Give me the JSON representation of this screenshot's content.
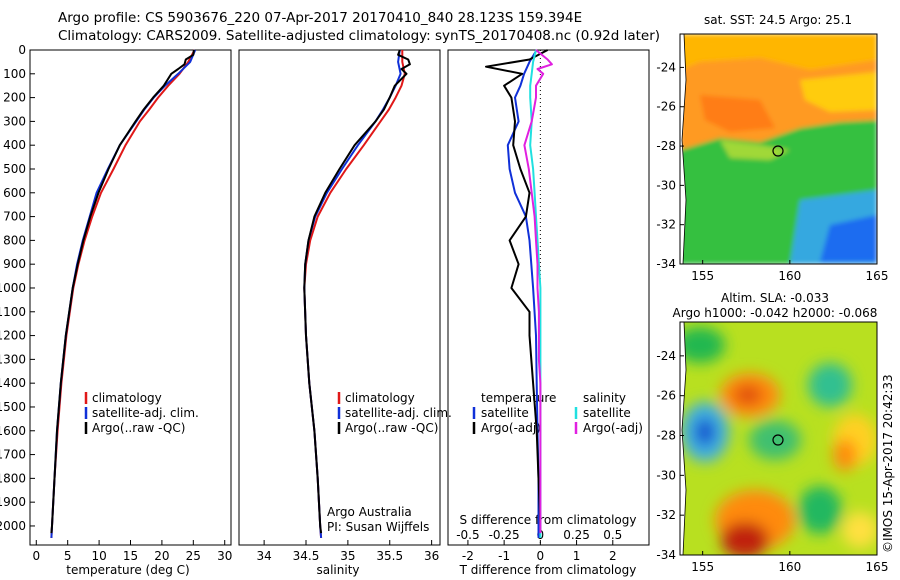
{
  "header": {
    "line1": "Argo profile: CS 5903676_220 07-Apr-2017 20170410_840 28.123S 159.394E",
    "line2": "Climatology: CARS2009. Satellite-adjusted climatology: synTS_20170408.nc (0.92d later)"
  },
  "colors": {
    "climatology": "#e01818",
    "satellite": "#1030d8",
    "argo": "#000000",
    "sal_satellite": "#20e0e0",
    "sal_argo": "#e020e0"
  },
  "labels": {
    "temp_xlabel": "temperature (deg C)",
    "sal_xlabel": "salinity",
    "diff_xlabel": "T difference from climatology",
    "diff_xlabel_top": "S difference from climatology",
    "legend_clim": "climatology",
    "legend_sat": "satellite-adj. clim.",
    "legend_argo": "Argo(..raw -QC)",
    "legend_temperature": "temperature",
    "legend_salinity": "salinity",
    "legend_satellite": "satellite",
    "legend_argo_adj": "Argo(-adj)",
    "credit1": "Argo Australia",
    "credit2": "PI: Susan Wijffels",
    "map1_title": "sat. SST: 24.5 Argo: 25.1",
    "map2_title1": "Altim. SLA: -0.033",
    "map2_title2": "Argo h1000: -0.042 h2000: -0.068",
    "side_text": "©IMOS 15-Apr-2017 20:42:33"
  },
  "chart_data": [
    {
      "type": "line",
      "panel": "temperature",
      "xlabel": "temperature (deg C)",
      "ylabel": "",
      "xlim": [
        -1,
        31
      ],
      "ylim": [
        2080,
        0
      ],
      "xticks": [
        0,
        5,
        10,
        15,
        20,
        25,
        30
      ],
      "yticks": [
        0,
        100,
        200,
        300,
        400,
        500,
        600,
        700,
        800,
        900,
        1000,
        1100,
        1200,
        1300,
        1400,
        1500,
        1600,
        1700,
        1800,
        1900,
        2000
      ],
      "series": [
        {
          "name": "climatology",
          "depth": [
            0,
            50,
            100,
            150,
            200,
            250,
            300,
            400,
            500,
            600,
            700,
            800,
            900,
            1000,
            1200,
            1400,
            1600,
            1800,
            2000,
            2050
          ],
          "values": [
            25.2,
            24.2,
            22.8,
            21,
            19.4,
            18,
            16.5,
            14.2,
            12.3,
            10.3,
            8.9,
            7.7,
            6.7,
            5.9,
            4.8,
            4.0,
            3.4,
            2.9,
            2.5,
            2.4
          ]
        },
        {
          "name": "satellite-adj. clim.",
          "depth": [
            0,
            50,
            100,
            150,
            200,
            250,
            300,
            400,
            500,
            600,
            700,
            800,
            900,
            1000,
            1200,
            1400,
            1600,
            1800,
            2000,
            2050
          ],
          "values": [
            25.3,
            24.5,
            22.6,
            20.5,
            18.7,
            17.2,
            15.9,
            13.3,
            11.4,
            9.6,
            8.5,
            7.4,
            6.5,
            5.8,
            4.7,
            3.9,
            3.3,
            2.9,
            2.5,
            2.4
          ]
        },
        {
          "name": "Argo(..raw -QC)",
          "depth": [
            0,
            20,
            40,
            60,
            80,
            100,
            150,
            200,
            250,
            300,
            400,
            500,
            600,
            700,
            800,
            900,
            1000,
            1200,
            1400,
            1600,
            1800,
            2000,
            2030
          ],
          "values": [
            25.1,
            25.0,
            23.8,
            23.6,
            22.6,
            21.5,
            20.3,
            18.6,
            17.1,
            15.8,
            13.3,
            11.5,
            9.9,
            8.6,
            7.5,
            6.6,
            5.8,
            4.7,
            3.9,
            3.3,
            2.9,
            2.5,
            2.4
          ]
        }
      ],
      "legend": "bottom"
    },
    {
      "type": "line",
      "panel": "salinity",
      "xlabel": "salinity",
      "xlim": [
        33.7,
        36.1
      ],
      "ylim": [
        2080,
        0
      ],
      "xticks": [
        34,
        34.5,
        35,
        35.5,
        36
      ],
      "series": [
        {
          "name": "climatology",
          "depth": [
            0,
            50,
            100,
            150,
            200,
            250,
            300,
            400,
            500,
            600,
            700,
            800,
            900,
            1000,
            1200,
            1400,
            1600,
            1800,
            2000,
            2050
          ],
          "values": [
            35.65,
            35.65,
            35.68,
            35.64,
            35.57,
            35.49,
            35.39,
            35.19,
            34.98,
            34.79,
            34.64,
            34.55,
            34.5,
            34.48,
            34.5,
            34.54,
            34.6,
            34.64,
            34.67,
            34.68
          ]
        },
        {
          "name": "satellite-adj. clim.",
          "depth": [
            0,
            50,
            100,
            150,
            200,
            250,
            300,
            400,
            500,
            600,
            700,
            800,
            900,
            1000,
            1200,
            1400,
            1600,
            1800,
            2000,
            2050
          ],
          "values": [
            35.62,
            35.6,
            35.63,
            35.57,
            35.5,
            35.42,
            35.33,
            35.12,
            34.93,
            34.75,
            34.61,
            34.53,
            34.49,
            34.48,
            34.5,
            34.54,
            34.6,
            34.64,
            34.67,
            34.68
          ]
        },
        {
          "name": "Argo(..raw -QC)",
          "depth": [
            0,
            20,
            40,
            60,
            80,
            100,
            150,
            200,
            250,
            300,
            400,
            500,
            600,
            700,
            800,
            900,
            1000,
            1200,
            1400,
            1600,
            1800,
            2000,
            2030
          ],
          "values": [
            35.62,
            35.6,
            35.72,
            35.74,
            35.64,
            35.7,
            35.56,
            35.5,
            35.43,
            35.33,
            35.08,
            34.9,
            34.73,
            34.6,
            34.53,
            34.49,
            34.48,
            34.5,
            34.54,
            34.6,
            34.64,
            34.67,
            34.68
          ]
        }
      ],
      "legend": "bottom"
    },
    {
      "type": "line",
      "panel": "difference",
      "xlabel": "T difference from climatology",
      "xlabel_top": "S difference from climatology",
      "xlim": [
        -2.55,
        3.0
      ],
      "ylim": [
        2080,
        0
      ],
      "xticks": [
        -2,
        -1,
        0,
        1,
        2
      ],
      "xticks_top": [
        -0.5,
        -0.25,
        0,
        0.25,
        0.5
      ],
      "series": [
        {
          "name": "temperature satellite",
          "depth": [
            0,
            50,
            100,
            150,
            200,
            300,
            400,
            500,
            600,
            700,
            800,
            900,
            1000,
            1200,
            1400,
            1600,
            1800,
            2000,
            2050
          ],
          "values": [
            -0.1,
            -0.3,
            -0.45,
            -0.55,
            -0.7,
            -0.6,
            -0.9,
            -0.85,
            -0.7,
            -0.4,
            -0.3,
            -0.25,
            -0.2,
            -0.12,
            -0.1,
            -0.08,
            -0.05,
            -0.05,
            -0.05
          ]
        },
        {
          "name": "temperature Argo(-adj)",
          "depth": [
            0,
            40,
            70,
            100,
            150,
            200,
            300,
            400,
            500,
            600,
            700,
            800,
            900,
            1000,
            1100,
            1200,
            1400,
            1600,
            1800,
            2000,
            2030
          ],
          "values": [
            0.2,
            -0.3,
            -1.5,
            -0.5,
            -1.0,
            -0.8,
            -0.7,
            -0.75,
            -0.55,
            -0.3,
            -0.4,
            -0.85,
            -0.6,
            -0.8,
            -0.3,
            -0.3,
            -0.2,
            -0.1,
            -0.05,
            0.0,
            0.0
          ]
        },
        {
          "name": "salinity satellite",
          "depth": [
            0,
            50,
            100,
            150,
            200,
            300,
            400,
            500,
            600,
            700,
            800,
            900,
            1000,
            1200,
            1400,
            1600,
            1800,
            2000,
            2050
          ],
          "values": [
            -0.03,
            -0.05,
            -0.06,
            -0.07,
            -0.07,
            -0.06,
            -0.07,
            -0.05,
            -0.04,
            -0.03,
            -0.02,
            -0.01,
            0,
            0,
            0,
            0,
            0,
            0,
            0
          ]
        },
        {
          "name": "salinity Argo(-adj)",
          "depth": [
            0,
            40,
            60,
            80,
            100,
            150,
            200,
            300,
            400,
            500,
            600,
            700,
            800,
            900,
            1000,
            1100,
            1200,
            1300,
            1400,
            1600,
            1800,
            2000,
            2030
          ],
          "values": [
            -0.03,
            0.05,
            0.08,
            -0.02,
            0.02,
            -0.03,
            -0.03,
            -0.06,
            -0.11,
            -0.08,
            -0.06,
            -0.04,
            -0.03,
            -0.02,
            -0.02,
            -0.01,
            -0.01,
            -0.01,
            0,
            0,
            0,
            0,
            0
          ]
        }
      ],
      "legend": "bottom"
    },
    {
      "type": "heatmap",
      "panel": "sst-map",
      "title": "sat. SST: 24.5 Argo: 25.1",
      "xlim": [
        153.7,
        165
      ],
      "ylim": [
        -34,
        -22.3
      ],
      "xticks": [
        155,
        160,
        165
      ],
      "yticks": [
        -24,
        -26,
        -28,
        -30,
        -32,
        -34
      ],
      "profile_location": [
        159.394,
        -28.123
      ]
    },
    {
      "type": "heatmap",
      "panel": "sla-map",
      "title": "Altim. SLA: -0.033",
      "subtitle": "Argo h1000: -0.042 h2000: -0.068",
      "xlim": [
        153.7,
        165
      ],
      "ylim": [
        -34,
        -22.3
      ],
      "xticks": [
        155,
        160,
        165
      ],
      "yticks": [
        -24,
        -26,
        -28,
        -30,
        -32,
        -34
      ],
      "profile_location": [
        159.394,
        -28.123
      ]
    }
  ]
}
